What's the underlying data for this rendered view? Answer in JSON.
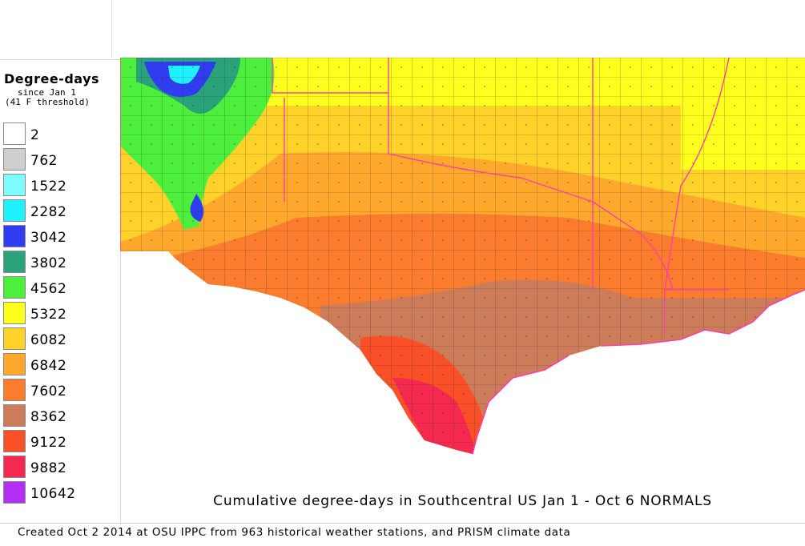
{
  "legend": {
    "title": "Degree-days",
    "subtitle_line1": "since Jan 1",
    "subtitle_line2": "(41 F threshold)",
    "items": [
      {
        "label": "2",
        "color": "#ffffff"
      },
      {
        "label": "762",
        "color": "#cfcfcf"
      },
      {
        "label": "1522",
        "color": "#7ffcff"
      },
      {
        "label": "2282",
        "color": "#1ef2ff"
      },
      {
        "label": "3042",
        "color": "#2f3cf0"
      },
      {
        "label": "3802",
        "color": "#2aa37a"
      },
      {
        "label": "4562",
        "color": "#4cf03c"
      },
      {
        "label": "5322",
        "color": "#ffff1e"
      },
      {
        "label": "6082",
        "color": "#ffd22a"
      },
      {
        "label": "6842",
        "color": "#ffa82c"
      },
      {
        "label": "7602",
        "color": "#fa7c2c"
      },
      {
        "label": "8362",
        "color": "#cd7c5a"
      },
      {
        "label": "9122",
        "color": "#fa5028"
      },
      {
        "label": "9882",
        "color": "#f52850"
      },
      {
        "label": "10642",
        "color": "#b42ff5"
      }
    ]
  },
  "map_title": "Cumulative degree-days in Southcentral US Jan 1 - Oct 6 NORMALS",
  "credit": "Created Oct 2 2014 at OSU IPPC from 963 historical weather stations, and PRISM climate data",
  "colors": {
    "county_lines": "#333333",
    "state_lines": "#ff3fa8"
  }
}
